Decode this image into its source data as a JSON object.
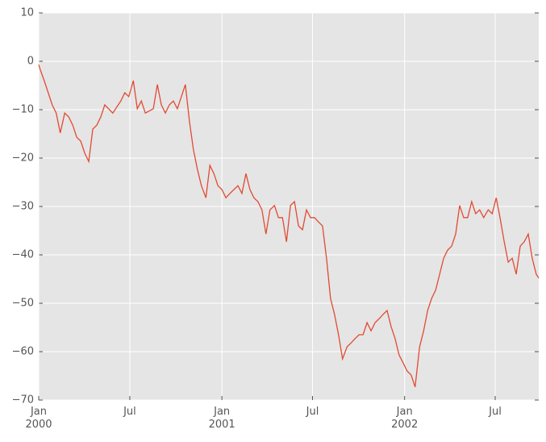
{
  "chart_data": {
    "type": "line",
    "x": [
      0,
      3,
      11,
      19,
      27,
      35,
      43,
      52,
      60,
      68,
      76,
      84,
      92,
      100,
      108,
      116,
      124,
      132,
      148,
      164,
      172,
      180,
      189,
      197,
      205,
      213,
      229,
      237,
      245,
      253,
      261,
      269,
      277,
      293,
      301,
      309,
      317,
      325,
      334,
      342,
      350,
      358,
      366,
      374,
      382,
      390,
      398,
      406,
      414,
      422,
      430,
      438,
      446,
      454,
      462,
      471,
      479,
      487,
      495,
      503,
      511,
      519,
      527,
      535,
      543,
      551,
      559,
      567,
      575,
      583,
      591,
      599,
      607,
      616,
      624,
      632,
      640,
      648,
      656,
      664,
      672,
      680,
      688,
      696,
      704,
      712,
      720,
      728,
      736,
      744,
      752,
      761,
      769,
      777,
      785,
      793,
      801,
      809,
      817,
      825,
      833,
      841,
      849,
      857,
      865,
      873,
      881,
      889,
      898,
      906,
      914,
      922,
      930,
      938,
      946,
      954,
      962,
      970,
      978,
      986,
      994,
      999
    ],
    "values": [
      -0.7,
      -1.7,
      -4,
      -6.5,
      -9,
      -10.7,
      -14.8,
      -10.7,
      -11.5,
      -13.2,
      -15.7,
      -16.5,
      -19,
      -20.7,
      -14,
      -13.2,
      -11.5,
      -9,
      -10.7,
      -8.2,
      -6.5,
      -7.3,
      -4,
      -9.8,
      -8.2,
      -10.7,
      -9.8,
      -4.8,
      -9,
      -10.7,
      -9,
      -8.2,
      -9.8,
      -4.8,
      -12.3,
      -18.2,
      -22.3,
      -25.7,
      -28.2,
      -21.5,
      -23.2,
      -25.7,
      -26.5,
      -28.2,
      -27.3,
      -26.5,
      -25.7,
      -27.3,
      -23.2,
      -26.5,
      -28.2,
      -29,
      -30.7,
      -35.7,
      -30.7,
      -29.8,
      -32.3,
      -32.3,
      -37.3,
      -29.8,
      -29,
      -34,
      -34.8,
      -30.7,
      -32.3,
      -32.3,
      -33.2,
      -34,
      -40.7,
      -49,
      -52.3,
      -56.5,
      -61.5,
      -59,
      -58.2,
      -57.3,
      -56.5,
      -56.5,
      -54,
      -55.7,
      -54,
      -53.2,
      -52.3,
      -51.5,
      -54.8,
      -57.3,
      -60.7,
      -62.3,
      -64,
      -64.8,
      -67.3,
      -59,
      -55.7,
      -51.5,
      -49,
      -47.3,
      -44,
      -40.7,
      -39,
      -38.2,
      -35.7,
      -29.8,
      -32.3,
      -32.3,
      -29,
      -31.5,
      -30.7,
      -32.3,
      -30.7,
      -31.5,
      -28.2,
      -32.5,
      -37.3,
      -41.5,
      -40.7,
      -44,
      -38.2,
      -37.3,
      -35.7,
      -40.7,
      -44,
      -44.8
    ],
    "color": "#e24a33",
    "xlim": [
      0,
      999
    ],
    "xticks": [
      {
        "value": 0,
        "label": "Jan\n2000"
      },
      {
        "value": 182,
        "label": "Jul"
      },
      {
        "value": 366,
        "label": "Jan\n2001"
      },
      {
        "value": 547,
        "label": "Jul"
      },
      {
        "value": 731,
        "label": "Jan\n2002"
      },
      {
        "value": 912,
        "label": "Jul"
      }
    ],
    "ylim": [
      -70,
      10
    ],
    "yticks": [
      {
        "value": -70,
        "label": "−70"
      },
      {
        "value": -60,
        "label": "−60"
      },
      {
        "value": -50,
        "label": "−50"
      },
      {
        "value": -40,
        "label": "−40"
      },
      {
        "value": -30,
        "label": "−30"
      },
      {
        "value": -20,
        "label": "−20"
      },
      {
        "value": -10,
        "label": "−10"
      },
      0,
      10
    ],
    "grid": true
  }
}
